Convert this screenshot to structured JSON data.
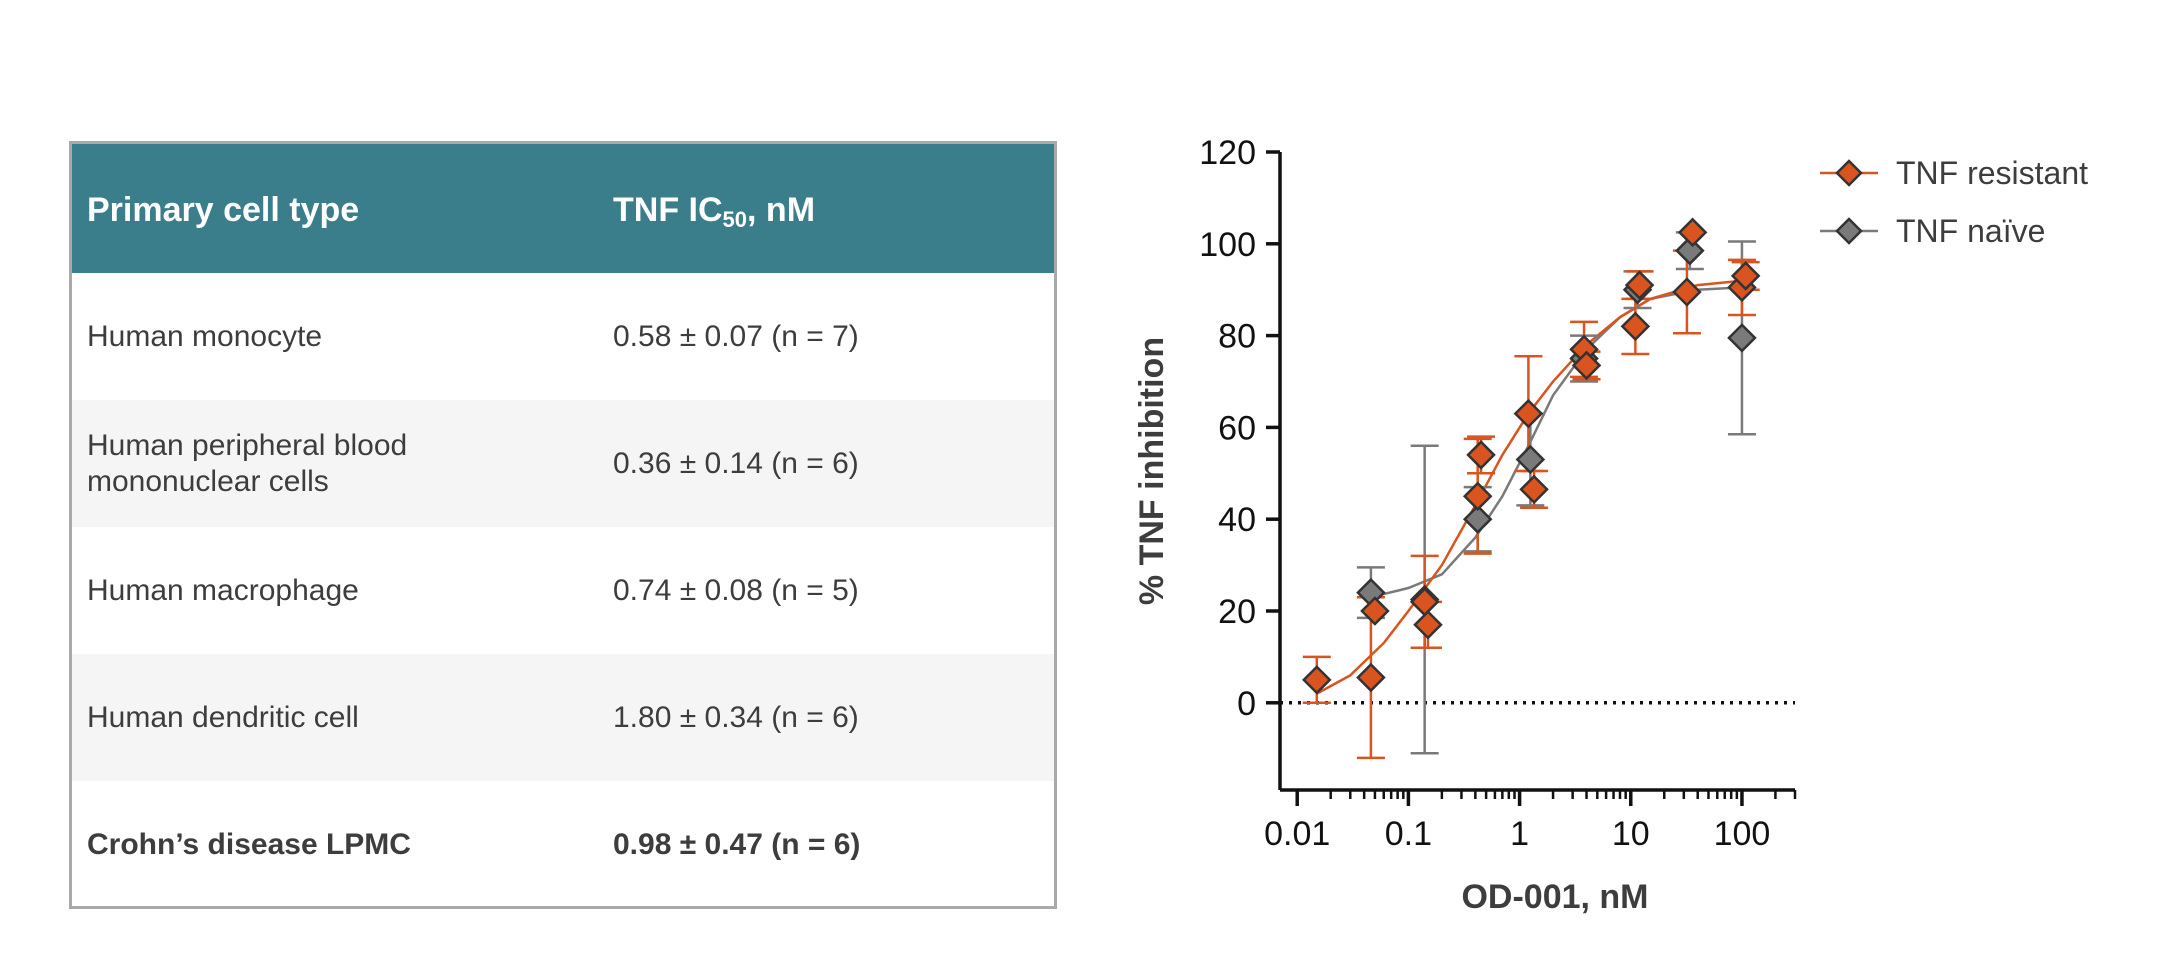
{
  "table": {
    "header": {
      "col1": "Primary cell type",
      "col2_main": "TNF IC",
      "col2_sub": "50",
      "col2_tail": ", nM"
    },
    "rows": [
      {
        "cell": "Human monocyte",
        "value": "0.58 ± 0.07 (n = 7)",
        "bold": false
      },
      {
        "cell": "Human peripheral blood\nmononuclear cells",
        "value": "0.36 ± 0.14 (n = 6)",
        "bold": false
      },
      {
        "cell": "Human macrophage",
        "value": "0.74 ± 0.08 (n = 5)",
        "bold": false
      },
      {
        "cell": "Human dendritic cell",
        "value": "1.80 ± 0.34 (n = 6)",
        "bold": false
      },
      {
        "cell": "Crohn’s disease LPMC",
        "value": "0.98 ± 0.47 (n = 6)",
        "bold": true
      }
    ],
    "colors": {
      "header_bg": "#3a7d8b",
      "alt_row_bg": "#f5f5f5"
    }
  },
  "chart_data": {
    "type": "scatter",
    "xlabel": "OD-001, nM",
    "ylabel": "% TNF inhibition",
    "x_scale": "log",
    "xlim": [
      0.007,
      300
    ],
    "ylim": [
      -19,
      120
    ],
    "x_ticks": [
      0.01,
      0.1,
      1,
      10,
      100
    ],
    "x_tick_labels": [
      "0.01",
      "0.1",
      "1",
      "10",
      "100"
    ],
    "y_ticks": [
      0,
      20,
      40,
      60,
      80,
      100,
      120
    ],
    "y_tick_labels": [
      "0",
      "20",
      "40",
      "60",
      "80",
      "100",
      "120"
    ],
    "reference_line": {
      "y": 0,
      "style": "dotted"
    },
    "legend_position": "top-right",
    "series": [
      {
        "name": "TNF resistant",
        "color": "#d9541e",
        "marker": "diamond",
        "points": [
          {
            "x": 0.015,
            "y": 5,
            "err": 5
          },
          {
            "x": 0.046,
            "y": 5.5,
            "err": 17.5
          },
          {
            "x": 0.05,
            "y": 20,
            "err": 0
          },
          {
            "x": 0.14,
            "y": 22,
            "err": 10
          },
          {
            "x": 0.15,
            "y": 17,
            "err": 5
          },
          {
            "x": 0.42,
            "y": 45,
            "err": 12.5
          },
          {
            "x": 0.45,
            "y": 54,
            "err": 4
          },
          {
            "x": 1.2,
            "y": 63,
            "err": 12.5
          },
          {
            "x": 1.35,
            "y": 46.5,
            "err": 4
          },
          {
            "x": 3.8,
            "y": 77,
            "err": 6
          },
          {
            "x": 4.0,
            "y": 73.5,
            "err": 3
          },
          {
            "x": 11,
            "y": 82,
            "err": 6
          },
          {
            "x": 12,
            "y": 91,
            "err": 3
          },
          {
            "x": 32,
            "y": 89.5,
            "err": 9
          },
          {
            "x": 36,
            "y": 102.5,
            "err": 0
          },
          {
            "x": 100,
            "y": 90.5,
            "err": 6
          },
          {
            "x": 108,
            "y": 93,
            "err": 3
          }
        ],
        "fit": [
          {
            "x": 0.015,
            "y": 2
          },
          {
            "x": 0.03,
            "y": 6
          },
          {
            "x": 0.06,
            "y": 13
          },
          {
            "x": 0.1,
            "y": 20
          },
          {
            "x": 0.2,
            "y": 30
          },
          {
            "x": 0.4,
            "y": 43
          },
          {
            "x": 0.7,
            "y": 54
          },
          {
            "x": 1.2,
            "y": 63
          },
          {
            "x": 2,
            "y": 70
          },
          {
            "x": 4,
            "y": 78
          },
          {
            "x": 8,
            "y": 84
          },
          {
            "x": 15,
            "y": 88
          },
          {
            "x": 40,
            "y": 91
          },
          {
            "x": 105,
            "y": 92
          }
        ]
      },
      {
        "name": "TNF naïve",
        "color": "#7a7a7a",
        "marker": "diamond",
        "points": [
          {
            "x": 0.046,
            "y": 24,
            "err": 5.5
          },
          {
            "x": 0.14,
            "y": 22.5,
            "err": 33.5
          },
          {
            "x": 0.42,
            "y": 40,
            "err": 7
          },
          {
            "x": 1.25,
            "y": 53,
            "err": 10
          },
          {
            "x": 3.8,
            "y": 75,
            "err": 5
          },
          {
            "x": 11.5,
            "y": 90,
            "err": 4
          },
          {
            "x": 34,
            "y": 98.5,
            "err": 4
          },
          {
            "x": 100,
            "y": 79.5,
            "err": 21
          }
        ],
        "fit": [
          {
            "x": 0.046,
            "y": 23
          },
          {
            "x": 0.1,
            "y": 25
          },
          {
            "x": 0.2,
            "y": 28
          },
          {
            "x": 0.4,
            "y": 36
          },
          {
            "x": 0.7,
            "y": 45
          },
          {
            "x": 1.2,
            "y": 56
          },
          {
            "x": 2,
            "y": 67
          },
          {
            "x": 4,
            "y": 77
          },
          {
            "x": 8,
            "y": 84
          },
          {
            "x": 15,
            "y": 88
          },
          {
            "x": 40,
            "y": 90
          },
          {
            "x": 100,
            "y": 90.5
          }
        ]
      }
    ]
  }
}
